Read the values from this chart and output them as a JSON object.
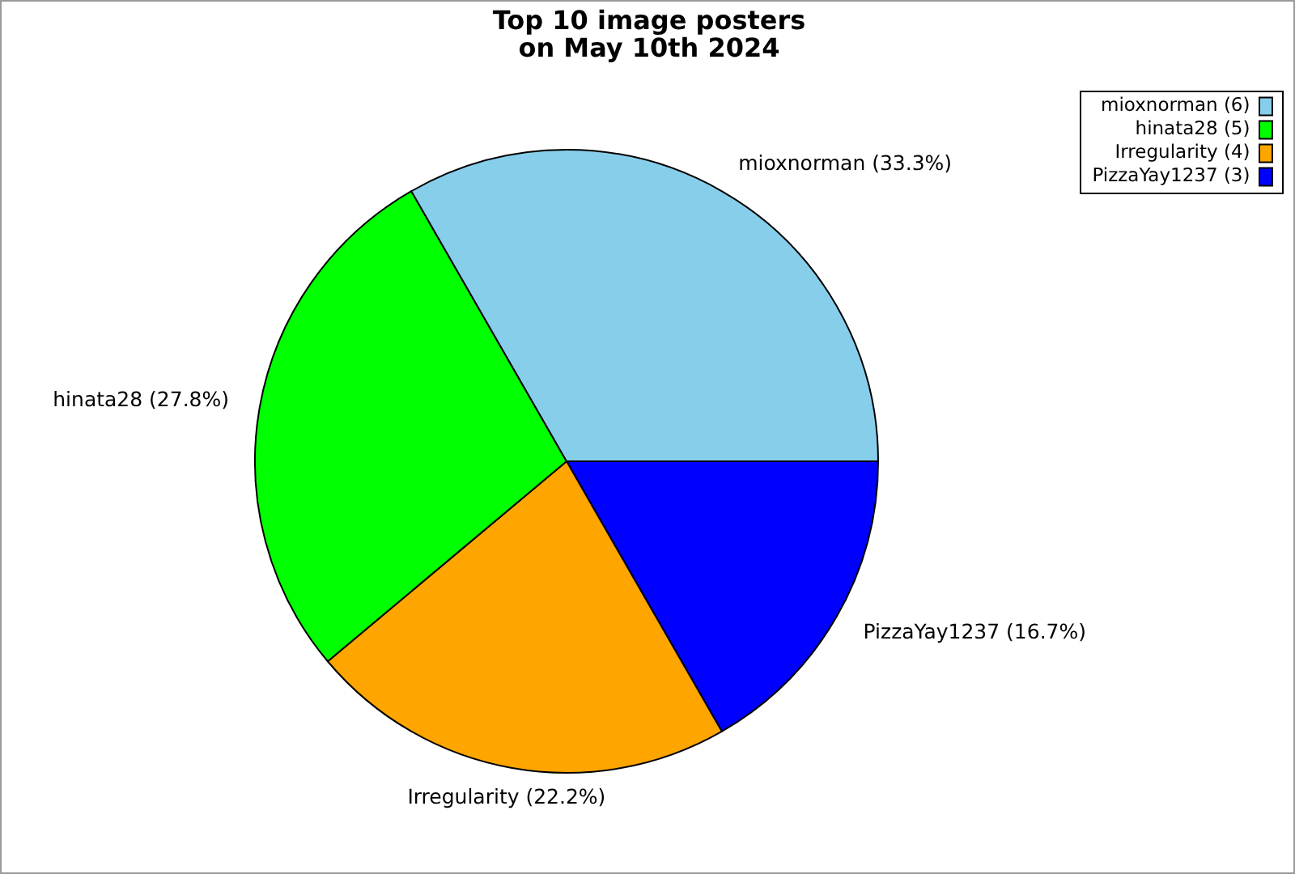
{
  "chart_data": {
    "type": "pie",
    "title": "Top 10 image posters\non May 10th 2024",
    "categories": [
      "mioxnorman (6)",
      "hinata28 (5)",
      "Irregularity (4)",
      "PizzaYay1237 (3)"
    ],
    "values": [
      33.3,
      27.8,
      22.2,
      16.7
    ],
    "colors": [
      "#87ceeb",
      "#00ff00",
      "#ffa500",
      "#0000ff"
    ],
    "value_labels": [
      "mioxnorman (33.3%)",
      "hinata28 (27.8%)",
      "Irregularity (22.2%)",
      "PizzaYay1237 (16.7%)"
    ],
    "legend": "top right"
  }
}
